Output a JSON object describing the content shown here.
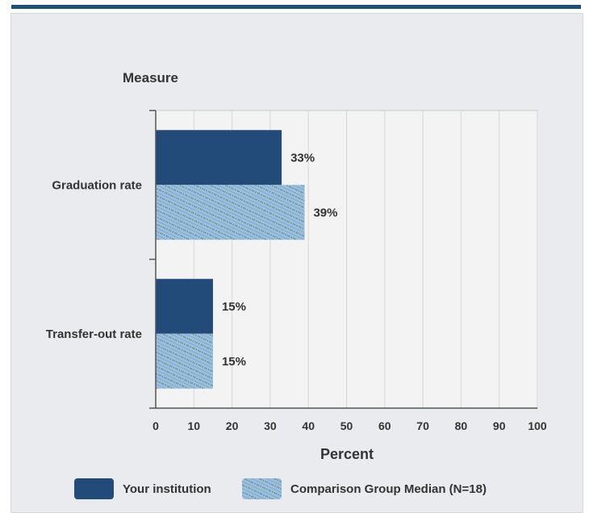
{
  "chart_data": {
    "type": "bar",
    "orientation": "horizontal",
    "ylabel": "Measure",
    "xlabel": "Percent",
    "categories": [
      "Graduation rate",
      "Transfer-out rate"
    ],
    "series": [
      {
        "name": "Your institution",
        "values": [
          33,
          15
        ],
        "color": "#234b7a",
        "pattern": "solid"
      },
      {
        "name": "Comparison Group Median (N=18)",
        "values": [
          39,
          15
        ],
        "color": "#9cbfe0",
        "pattern": "hatched"
      }
    ],
    "data_labels": [
      [
        "33%",
        "15%"
      ],
      [
        "39%",
        "15%"
      ]
    ],
    "xlim": [
      0,
      100
    ],
    "xticks": [
      "0",
      "10",
      "20",
      "30",
      "40",
      "50",
      "60",
      "70",
      "80",
      "90",
      "100"
    ],
    "grid": true,
    "legend_position": "bottom"
  }
}
